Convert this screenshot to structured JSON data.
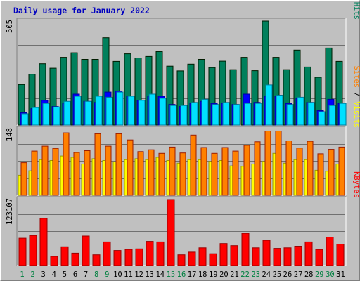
{
  "chart_data": [
    {
      "type": "bar",
      "title": "Daily usage for January 2022",
      "categories": [
        "1",
        "2",
        "3",
        "4",
        "5",
        "6",
        "7",
        "8",
        "9",
        "10",
        "11",
        "12",
        "13",
        "14",
        "15",
        "16",
        "17",
        "18",
        "19",
        "20",
        "21",
        "22",
        "23",
        "24",
        "25",
        "26",
        "27",
        "28",
        "29",
        "30",
        "31"
      ],
      "weekend_days": [
        "1",
        "2",
        "8",
        "9",
        "15",
        "16",
        "22",
        "23",
        "29",
        "30"
      ],
      "max_label": "505",
      "ylim": [
        0,
        505
      ],
      "series": [
        {
          "name": "Hits",
          "color": "#00805c",
          "values": [
            197,
            247,
            298,
            276,
            329,
            351,
            319,
            319,
            424,
            309,
            346,
            326,
            333,
            357,
            286,
            263,
            296,
            319,
            279,
            310,
            269,
            329,
            264,
            505,
            329,
            269,
            364,
            282,
            232,
            374,
            309
          ]
        },
        {
          "name": "Files",
          "color": "#0000ff",
          "values": [
            60,
            80,
            120,
            90,
            105,
            150,
            115,
            110,
            160,
            165,
            140,
            120,
            140,
            140,
            100,
            90,
            105,
            115,
            105,
            105,
            100,
            150,
            110,
            140,
            140,
            105,
            130,
            110,
            70,
            125,
            105
          ]
        },
        {
          "name": "Pages",
          "color": "#00e0ff",
          "values": [
            55,
            85,
            105,
            88,
            115,
            140,
            115,
            140,
            135,
            160,
            140,
            120,
            150,
            130,
            95,
            95,
            110,
            125,
            100,
            110,
            100,
            105,
            105,
            195,
            145,
            100,
            135,
            110,
            65,
            95,
            105
          ]
        }
      ],
      "legend": [
        "Pages",
        "/",
        "Files",
        "/",
        "Hits"
      ]
    },
    {
      "type": "bar",
      "max_label": "148",
      "ylim": [
        0,
        148
      ],
      "series": [
        {
          "name": "Visits",
          "color": "#ffff00",
          "values": [
            45,
            55,
            80,
            78,
            88,
            85,
            70,
            82,
            78,
            75,
            80,
            82,
            80,
            85,
            78,
            72,
            80,
            80,
            76,
            78,
            66,
            65,
            70,
            76,
            94,
            72,
            80,
            80,
            56,
            54,
            70
          ]
        },
        {
          "name": "Sites",
          "color": "#ff8000",
          "values": [
            73,
            99,
            110,
            105,
            140,
            96,
            100,
            138,
            110,
            138,
            124,
            98,
            102,
            94,
            108,
            95,
            135,
            107,
            94,
            107,
            99,
            112,
            120,
            144,
            144,
            122,
            106,
            121,
            93,
            103,
            108
          ]
        }
      ],
      "legend": [
        "Sites",
        "/",
        "Visits"
      ]
    },
    {
      "type": "bar",
      "max_label": "123107",
      "ylim": [
        0,
        123107
      ],
      "series": [
        {
          "name": "KBytes",
          "color": "#ff0000",
          "values": [
            51000,
            56000,
            88000,
            17000,
            35000,
            23000,
            55000,
            20000,
            44000,
            28000,
            30000,
            31000,
            45000,
            44000,
            123107,
            20000,
            25000,
            33000,
            22000,
            41000,
            37000,
            60000,
            33000,
            47000,
            32000,
            33000,
            36000,
            44000,
            30000,
            53000,
            40000
          ]
        }
      ],
      "legend": [
        "KBytes"
      ]
    }
  ]
}
